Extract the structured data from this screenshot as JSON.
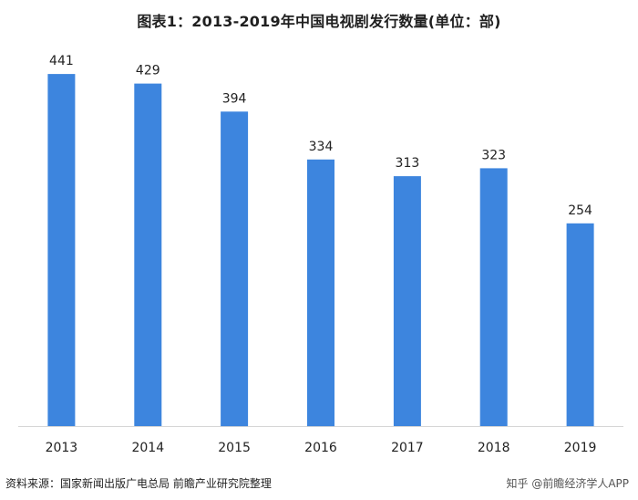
{
  "title": "图表1：2013-2019年中国电视剧发行数量(单位：部)",
  "footer": {
    "source": "资料来源：国家新闻出版广电总局 前瞻产业研究院整理",
    "watermark": "知乎 @前瞻经济学人APP"
  },
  "colors": {
    "bar": "#3d85de",
    "axis": "#d6d6d6",
    "label": "#222222"
  },
  "chart_data": {
    "type": "bar",
    "title": "图表1：2013-2019年中国电视剧发行数量(单位：部)",
    "categories": [
      "2013",
      "2014",
      "2015",
      "2016",
      "2017",
      "2018",
      "2019"
    ],
    "values": [
      441,
      429,
      394,
      334,
      313,
      323,
      254
    ],
    "xlabel": "",
    "ylabel": "",
    "ylim": [
      0,
      480
    ],
    "grid": false,
    "legend": "none",
    "data_labels": true
  }
}
